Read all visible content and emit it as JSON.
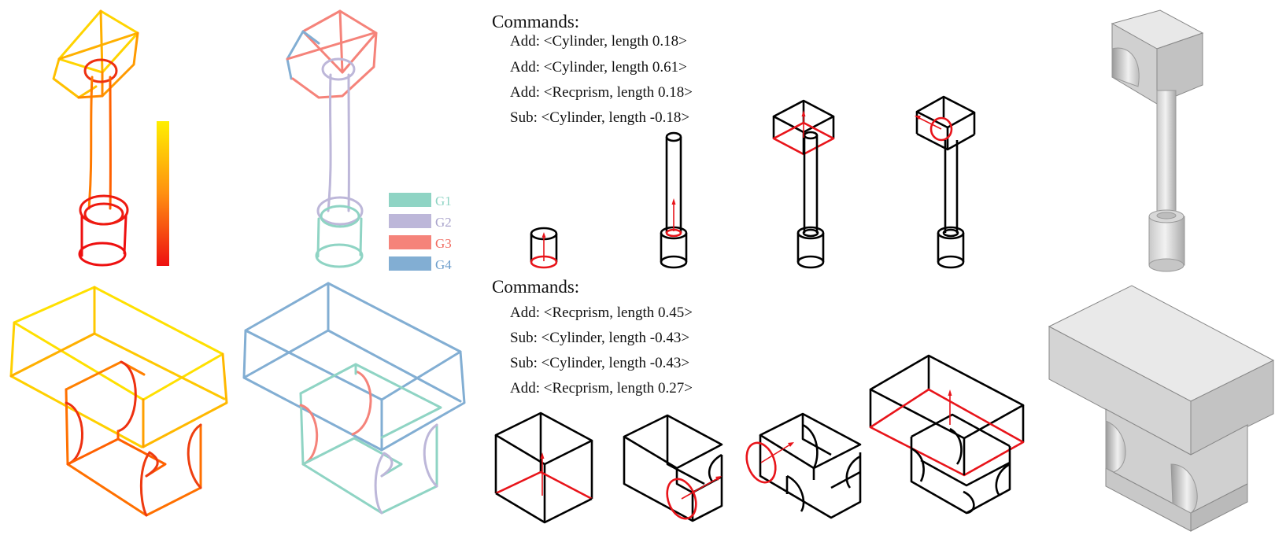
{
  "commands": [
    {
      "title": "Commands:",
      "lines": [
        "Add: <Cylinder, length 0.18>",
        "Add: <Cylinder, length 0.61>",
        "Add: <Recprism, length 0.18>",
        "Sub: <Cylinder, length -0.18>"
      ]
    },
    {
      "title": "Commands:",
      "lines": [
        "Add: <Recprism, length 0.45>",
        "Sub: <Cylinder, length -0.43>",
        "Sub: <Cylinder, length -0.43>",
        "Add: <Recprism, length 0.27>"
      ]
    }
  ],
  "legend": [
    {
      "label": "G1",
      "color": "#8fd4c4"
    },
    {
      "label": "G2",
      "color": "#bdb7d9"
    },
    {
      "label": "G3",
      "color": "#f5837a"
    },
    {
      "label": "G4",
      "color": "#82aed3"
    }
  ],
  "colors": {
    "gradient_top": "#ffee00",
    "gradient_bottom": "#ee1111",
    "stroke_black": "#000000",
    "stroke_red": "#e8141a",
    "render_gray": "#d6d6d6"
  }
}
